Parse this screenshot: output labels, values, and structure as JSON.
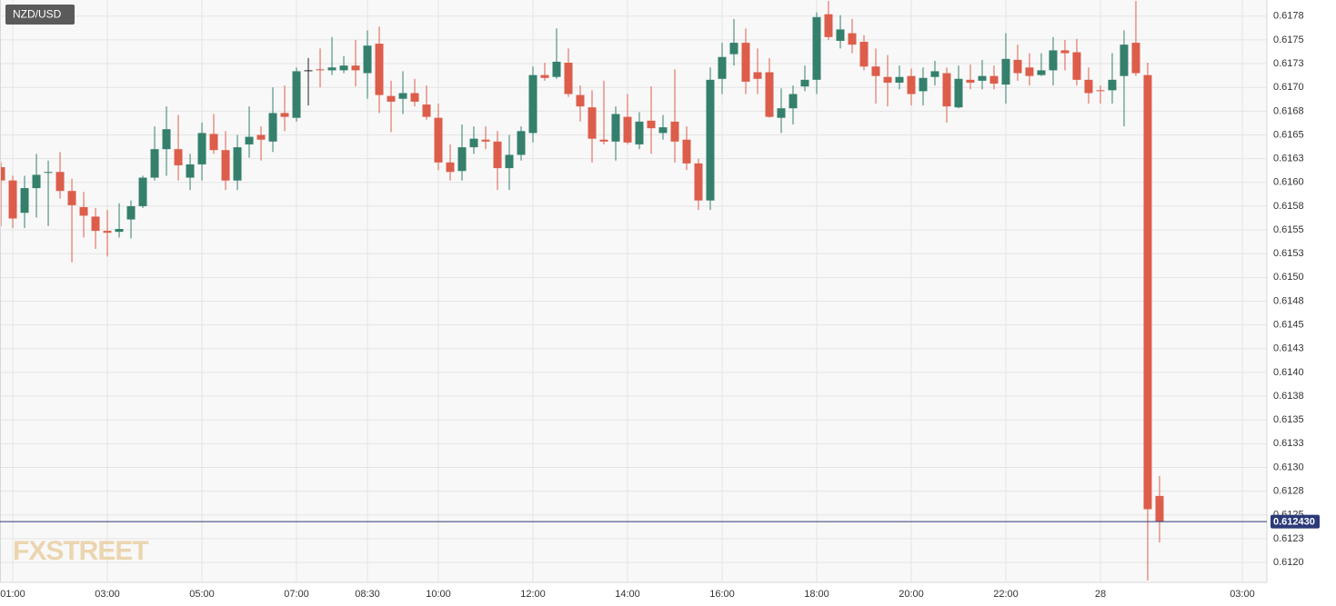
{
  "chart_data": {
    "type": "candlestick",
    "title": "NZD/USD",
    "watermark": "FXSTREET",
    "up_color": "#34806c",
    "down_color": "#dd5d4b",
    "neutral_color": "#222222",
    "grid": true,
    "xlim": [
      0.73,
      27.52
    ],
    "xticks": [
      {
        "value": 1,
        "label": "01:00"
      },
      {
        "value": 3,
        "label": "03:00"
      },
      {
        "value": 5,
        "label": "05:00"
      },
      {
        "value": 7,
        "label": "07:00"
      },
      {
        "value": 8.5,
        "label": "08:30"
      },
      {
        "value": 10,
        "label": "10:00"
      },
      {
        "value": 12,
        "label": "12:00"
      },
      {
        "value": 14,
        "label": "14:00"
      },
      {
        "value": 16,
        "label": "16:00"
      },
      {
        "value": 18,
        "label": "18:00"
      },
      {
        "value": 20,
        "label": "20:00"
      },
      {
        "value": 22,
        "label": "22:00"
      },
      {
        "value": 24,
        "label": "28"
      },
      {
        "value": 27,
        "label": "03:00"
      }
    ],
    "ylim": [
      0.61179,
      0.61792
    ],
    "yticks": [
      {
        "value": 0.612,
        "label": "0.6120"
      },
      {
        "value": 0.61225,
        "label": "0.6123"
      },
      0.6125,
      {
        "value": 0.61275,
        "label": "0.6128"
      },
      {
        "value": 0.613,
        "label": "0.6130"
      },
      {
        "value": 0.61325,
        "label": "0.6133"
      },
      0.6135,
      {
        "value": 0.61375,
        "label": "0.6138"
      },
      {
        "value": 0.614,
        "label": "0.6140"
      },
      {
        "value": 0.61425,
        "label": "0.6143"
      },
      0.6145,
      {
        "value": 0.61475,
        "label": "0.6148"
      },
      {
        "value": 0.615,
        "label": "0.6150"
      },
      {
        "value": 0.61525,
        "label": "0.6153"
      },
      0.6155,
      {
        "value": 0.61575,
        "label": "0.6158"
      },
      {
        "value": 0.616,
        "label": "0.6160"
      },
      {
        "value": 0.61625,
        "label": "0.6163"
      },
      0.6165,
      {
        "value": 0.61675,
        "label": "0.6168"
      },
      {
        "value": 0.617,
        "label": "0.6170"
      },
      {
        "value": 0.61725,
        "label": "0.6173"
      },
      0.6175,
      {
        "value": 0.61775,
        "label": "0.6178"
      }
    ],
    "current_price": {
      "value": 0.61243,
      "label": "0.612430"
    },
    "x": [
      0.75,
      1,
      1.25,
      1.5,
      1.75,
      2,
      2.25,
      2.5,
      2.75,
      3,
      3.25,
      3.5,
      3.75,
      4,
      4.25,
      4.5,
      4.75,
      5,
      5.25,
      5.5,
      5.75,
      6,
      6.25,
      6.5,
      6.75,
      7,
      7.25,
      7.5,
      7.75,
      8,
      8.25,
      8.5,
      8.75,
      9,
      9.25,
      9.5,
      9.75,
      10,
      10.25,
      10.5,
      10.75,
      11,
      11.25,
      11.5,
      11.75,
      12,
      12.25,
      12.5,
      12.75,
      13,
      13.25,
      13.5,
      13.75,
      14,
      14.25,
      14.5,
      14.75,
      15,
      15.25,
      15.5,
      15.75,
      16,
      16.25,
      16.5,
      16.75,
      17,
      17.25,
      17.5,
      17.75,
      18,
      18.25,
      18.5,
      18.75,
      19,
      19.25,
      19.5,
      19.75,
      20,
      20.25,
      20.5,
      20.75,
      21,
      21.25,
      21.5,
      21.75,
      22,
      22.25,
      22.5,
      22.75,
      23,
      23.25,
      23.5,
      23.75,
      24,
      24.25,
      24.5,
      24.75,
      25,
      25.25
    ],
    "open": [
      0.61616,
      0.61602,
      0.61568,
      0.61594,
      0.6161,
      0.61611,
      0.61591,
      0.61574,
      0.61564,
      0.61549,
      0.61548,
      0.61561,
      0.61575,
      0.61605,
      0.61635,
      0.61635,
      0.61605,
      0.61619,
      0.61651,
      0.61634,
      0.61602,
      0.6164,
      0.6165,
      0.61643,
      0.61673,
      0.61668,
      0.61718,
      0.61719,
      0.61718,
      0.61718,
      0.61723,
      0.61715,
      0.61746,
      0.61691,
      0.61688,
      0.61694,
      0.61682,
      0.61668,
      0.61621,
      0.61612,
      0.61637,
      0.61645,
      0.61643,
      0.61615,
      0.61629,
      0.61652,
      0.61713,
      0.61711,
      0.61726,
      0.61692,
      0.61679,
      0.61645,
      0.61643,
      0.61669,
      0.6164,
      0.61665,
      0.61652,
      0.61664,
      0.61645,
      0.6162,
      0.61581,
      0.61709,
      0.61735,
      0.61747,
      0.61716,
      0.61716,
      0.61668,
      0.61678,
      0.61701,
      0.61708,
      0.61777,
      0.61749,
      0.61757,
      0.61748,
      0.61722,
      0.61711,
      0.61705,
      0.61712,
      0.61696,
      0.61711,
      0.61715,
      0.61679,
      0.61708,
      0.61707,
      0.61712,
      0.61703,
      0.61729,
      0.61721,
      0.61713,
      0.61718,
      0.61739,
      0.61737,
      0.61708,
      0.61697,
      0.61697,
      0.61712,
      0.61747,
      0.61713,
      0.6127
    ],
    "high": [
      0.61621,
      0.61607,
      0.61607,
      0.6163,
      0.61623,
      0.61632,
      0.61604,
      0.6159,
      0.61573,
      0.61571,
      0.61578,
      0.61581,
      0.61607,
      0.61659,
      0.6168,
      0.61671,
      0.6163,
      0.61663,
      0.61672,
      0.61654,
      0.6165,
      0.6168,
      0.61659,
      0.617,
      0.61702,
      0.61721,
      0.61731,
      0.61741,
      0.61753,
      0.61733,
      0.6175,
      0.6176,
      0.61764,
      0.61707,
      0.61717,
      0.61709,
      0.61702,
      0.61683,
      0.6164,
      0.61661,
      0.61659,
      0.61659,
      0.61654,
      0.6165,
      0.61659,
      0.61722,
      0.61726,
      0.61762,
      0.61741,
      0.61702,
      0.61697,
      0.61707,
      0.6168,
      0.61693,
      0.61674,
      0.61701,
      0.61671,
      0.61719,
      0.61659,
      0.61625,
      0.61721,
      0.61747,
      0.61772,
      0.61762,
      0.61741,
      0.61731,
      0.61699,
      0.61702,
      0.61723,
      0.61779,
      0.61791,
      0.61776,
      0.61772,
      0.61755,
      0.61741,
      0.61734,
      0.61723,
      0.6172,
      0.61721,
      0.61728,
      0.61721,
      0.61723,
      0.61724,
      0.61729,
      0.61723,
      0.61757,
      0.61745,
      0.61736,
      0.61736,
      0.61753,
      0.6175,
      0.61751,
      0.61721,
      0.61702,
      0.61736,
      0.6176,
      0.61791,
      0.61726,
      0.61291
    ],
    "low": [
      0.61554,
      0.61552,
      0.61552,
      0.61563,
      0.61554,
      0.61583,
      0.61516,
      0.61542,
      0.6153,
      0.61522,
      0.61542,
      0.61541,
      0.61573,
      0.61602,
      0.61607,
      0.61602,
      0.61592,
      0.61602,
      0.6163,
      0.61592,
      0.61592,
      0.61626,
      0.61623,
      0.61632,
      0.61654,
      0.61664,
      0.61681,
      0.617,
      0.61713,
      0.61715,
      0.61701,
      0.61688,
      0.61673,
      0.61653,
      0.61672,
      0.6168,
      0.61666,
      0.61613,
      0.61602,
      0.61602,
      0.6163,
      0.61635,
      0.61592,
      0.61592,
      0.61623,
      0.61642,
      0.61707,
      0.61709,
      0.6169,
      0.61664,
      0.61621,
      0.6164,
      0.61623,
      0.6164,
      0.61635,
      0.6163,
      0.61645,
      0.61621,
      0.61613,
      0.61571,
      0.61571,
      0.61693,
      0.61723,
      0.61693,
      0.61693,
      0.61668,
      0.61652,
      0.61661,
      0.61696,
      0.61693,
      0.6175,
      0.61741,
      0.61736,
      0.61718,
      0.61683,
      0.6168,
      0.61698,
      0.61681,
      0.61681,
      0.61702,
      0.61663,
      0.61678,
      0.61698,
      0.61698,
      0.61698,
      0.61683,
      0.61707,
      0.61702,
      0.61712,
      0.61702,
      0.61718,
      0.61702,
      0.61683,
      0.61683,
      0.61683,
      0.61659,
      0.61712,
      0.61181,
      0.61221
    ],
    "close": [
      0.61602,
      0.61562,
      0.61594,
      0.61608,
      0.61611,
      0.61591,
      0.61576,
      0.61565,
      0.61549,
      0.61547,
      0.61551,
      0.61575,
      0.61605,
      0.61635,
      0.61656,
      0.61618,
      0.61619,
      0.61652,
      0.61634,
      0.61602,
      0.61637,
      0.61648,
      0.61645,
      0.61673,
      0.61669,
      0.61717,
      0.61718,
      0.61718,
      0.61721,
      0.61723,
      0.61718,
      0.61744,
      0.61692,
      0.61685,
      0.61694,
      0.61685,
      0.61669,
      0.61621,
      0.61611,
      0.61637,
      0.61646,
      0.61643,
      0.61615,
      0.61629,
      0.61654,
      0.61713,
      0.6171,
      0.61727,
      0.61693,
      0.6168,
      0.61646,
      0.61643,
      0.61672,
      0.61642,
      0.61664,
      0.61657,
      0.61658,
      0.61643,
      0.6162,
      0.61581,
      0.61708,
      0.61732,
      0.61747,
      0.61706,
      0.61709,
      0.61669,
      0.61678,
      0.61693,
      0.61708,
      0.61774,
      0.61753,
      0.61761,
      0.61745,
      0.61722,
      0.61712,
      0.61705,
      0.61711,
      0.61693,
      0.6171,
      0.61717,
      0.6168,
      0.61709,
      0.61705,
      0.61712,
      0.61704,
      0.6173,
      0.61715,
      0.61712,
      0.61718,
      0.61739,
      0.61736,
      0.61708,
      0.61694,
      0.61696,
      0.61708,
      0.61745,
      0.61715,
      0.61256,
      0.61243
    ]
  }
}
